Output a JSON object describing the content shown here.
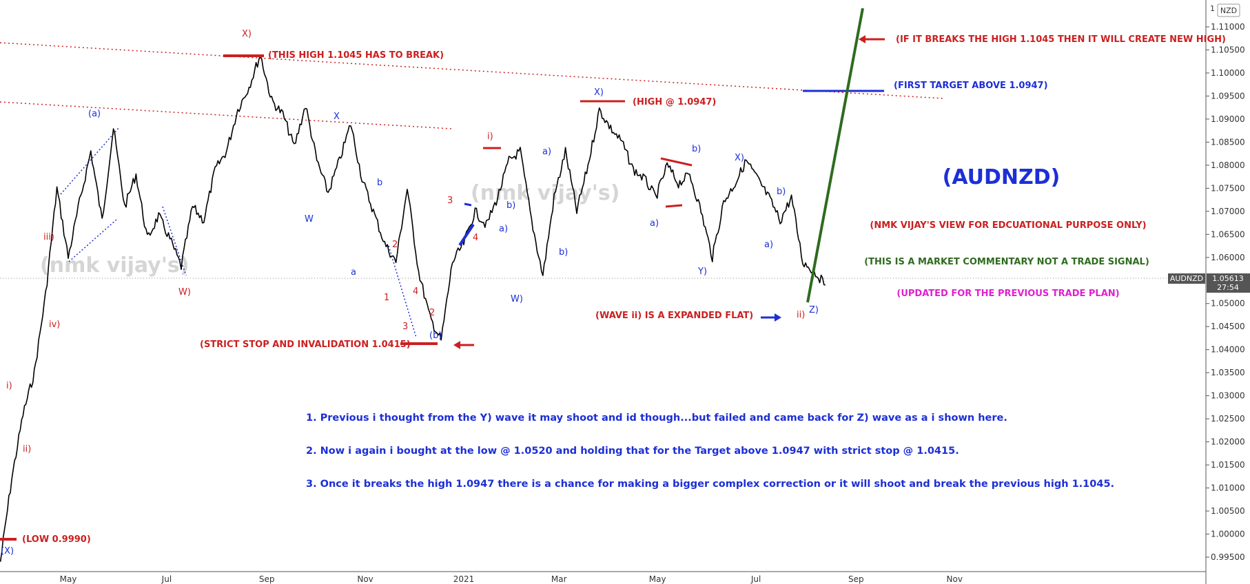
{
  "chart_data": {
    "type": "line",
    "symbol": "AUDNZD",
    "currency_badge": "NZD",
    "last_price": "1.05613",
    "countdown": "27:54",
    "watermark": "(nmk vijay's)",
    "title": "(AUDNZD)",
    "x_ticks": [
      "May",
      "Jul",
      "Sep",
      "Nov",
      "2021",
      "Mar",
      "May",
      "Jul",
      "Sep",
      "Nov"
    ],
    "y_ticks": [
      "1.11000",
      "1.10500",
      "1.10000",
      "1.09500",
      "1.09000",
      "1.08500",
      "1.08000",
      "1.07500",
      "1.07000",
      "1.06500",
      "1.06000",
      "1.05000",
      "1.04500",
      "1.04000",
      "1.03500",
      "1.03000",
      "1.02500",
      "1.02000",
      "1.01500",
      "1.01000",
      "1.00500",
      "1.00000",
      "0.99500"
    ],
    "ylim": [
      0.9935,
      1.1175
    ],
    "price_path": [
      [
        "2020-03-20",
        0.994
      ],
      [
        "2020-03-27",
        1.012
      ],
      [
        "2020-04-03",
        1.026
      ],
      [
        "2020-04-10",
        1.035
      ],
      [
        "2020-04-17",
        1.052
      ],
      [
        "2020-04-24",
        1.075
      ],
      [
        "2020-05-01",
        1.06
      ],
      [
        "2020-05-08",
        1.072
      ],
      [
        "2020-05-15",
        1.083
      ],
      [
        "2020-05-22",
        1.068
      ],
      [
        "2020-05-29",
        1.088
      ],
      [
        "2020-06-05",
        1.071
      ],
      [
        "2020-06-12",
        1.078
      ],
      [
        "2020-06-19",
        1.064
      ],
      [
        "2020-06-26",
        1.069
      ],
      [
        "2020-07-03",
        1.064
      ],
      [
        "2020-07-10",
        1.058
      ],
      [
        "2020-07-17",
        1.071
      ],
      [
        "2020-07-24",
        1.068
      ],
      [
        "2020-07-31",
        1.079
      ],
      [
        "2020-08-07",
        1.083
      ],
      [
        "2020-08-14",
        1.092
      ],
      [
        "2020-08-21",
        1.097
      ],
      [
        "2020-08-28",
        1.104
      ],
      [
        "2020-09-04",
        1.094
      ],
      [
        "2020-09-11",
        1.091
      ],
      [
        "2020-09-18",
        1.084
      ],
      [
        "2020-09-25",
        1.093
      ],
      [
        "2020-10-02",
        1.081
      ],
      [
        "2020-10-09",
        1.074
      ],
      [
        "2020-10-16",
        1.081
      ],
      [
        "2020-10-23",
        1.089
      ],
      [
        "2020-10-30",
        1.077
      ],
      [
        "2020-11-06",
        1.07
      ],
      [
        "2020-11-13",
        1.063
      ],
      [
        "2020-11-20",
        1.059
      ],
      [
        "2020-11-27",
        1.075
      ],
      [
        "2020-12-04",
        1.057
      ],
      [
        "2020-12-11",
        1.047
      ],
      [
        "2020-12-18",
        1.042
      ],
      [
        "2020-12-25",
        1.059
      ],
      [
        "2021-01-01",
        1.063
      ],
      [
        "2021-01-08",
        1.07
      ],
      [
        "2021-01-15",
        1.067
      ],
      [
        "2021-01-22",
        1.073
      ],
      [
        "2021-01-29",
        1.081
      ],
      [
        "2021-02-05",
        1.083
      ],
      [
        "2021-02-12",
        1.068
      ],
      [
        "2021-02-19",
        1.056
      ],
      [
        "2021-02-26",
        1.073
      ],
      [
        "2021-03-05",
        1.083
      ],
      [
        "2021-03-12",
        1.07
      ],
      [
        "2021-03-19",
        1.08
      ],
      [
        "2021-03-26",
        1.092
      ],
      [
        "2021-04-02",
        1.088
      ],
      [
        "2021-04-09",
        1.085
      ],
      [
        "2021-04-16",
        1.079
      ],
      [
        "2021-04-23",
        1.077
      ],
      [
        "2021-04-30",
        1.073
      ],
      [
        "2021-05-07",
        1.08
      ],
      [
        "2021-05-14",
        1.076
      ],
      [
        "2021-05-21",
        1.078
      ],
      [
        "2021-05-28",
        1.07
      ],
      [
        "2021-06-04",
        1.06
      ],
      [
        "2021-06-11",
        1.072
      ],
      [
        "2021-06-18",
        1.076
      ],
      [
        "2021-06-25",
        1.081
      ],
      [
        "2021-07-02",
        1.077
      ],
      [
        "2021-07-09",
        1.073
      ],
      [
        "2021-07-16",
        1.068
      ],
      [
        "2021-07-23",
        1.073
      ],
      [
        "2021-07-30",
        1.059
      ],
      [
        "2021-08-06",
        1.057
      ],
      [
        "2021-08-13",
        1.054
      ]
    ],
    "wave_labels_red": [
      "X)",
      "W)",
      "iii)",
      "iv)",
      "i)",
      "ii)",
      "2",
      "1",
      "4",
      "3",
      "2",
      "3",
      "4",
      "i)",
      "X)",
      "ii)"
    ],
    "wave_labels_blue": [
      "(a)",
      "X",
      "W",
      "a",
      "b",
      "(b)",
      "a)",
      "b)",
      "a)",
      "b)",
      "W)",
      "b)",
      "a)",
      "Y)",
      "X)",
      "b)",
      "a)",
      "Z)",
      "(X)"
    ],
    "annotations": {
      "break_high": "(THIS HIGH 1.1045 HAS TO BREAK)",
      "high_0947": "(HIGH @ 1.0947)",
      "stop": "(STRICT STOP AND INVALIDATION 1.0415)",
      "expanded_flat": "(WAVE ii) IS A EXPANDED FLAT)",
      "low": "(LOW 0.9990)",
      "new_high": "(IF IT BREAKS THE HIGH 1.1045 THEN IT WILL  CREATE NEW HIGH)",
      "first_target": "(FIRST TARGET ABOVE 1.0947)",
      "view": "(NMK VIJAY'S VIEW FOR EDCUATIONAL PURPOSE ONLY)",
      "commentary": "(THIS IS A MARKET COMMENTARY NOT A TRADE SIGNAL)",
      "updated": "(UPDATED FOR THE PREVIOUS TRADE PLAN)"
    },
    "notes": [
      "1. Previous i thought from the Y) wave it may shoot and id though...but failed and came back for Z) wave as a i shown here.",
      "2. Now i again i bought at the low @ 1.0520 and holding that for the Target above 1.0947 with strict stop @ 1.0415.",
      "3. Once it breaks the  high 1.0947 there is a chance for making a bigger complex correction or it will shoot and break the previous high 1.1045."
    ],
    "colors": {
      "red": "#cc1f1f",
      "blue": "#1c2fd6",
      "green": "#2f6b1f",
      "magenta": "#e020d0",
      "price": "#000000"
    }
  }
}
